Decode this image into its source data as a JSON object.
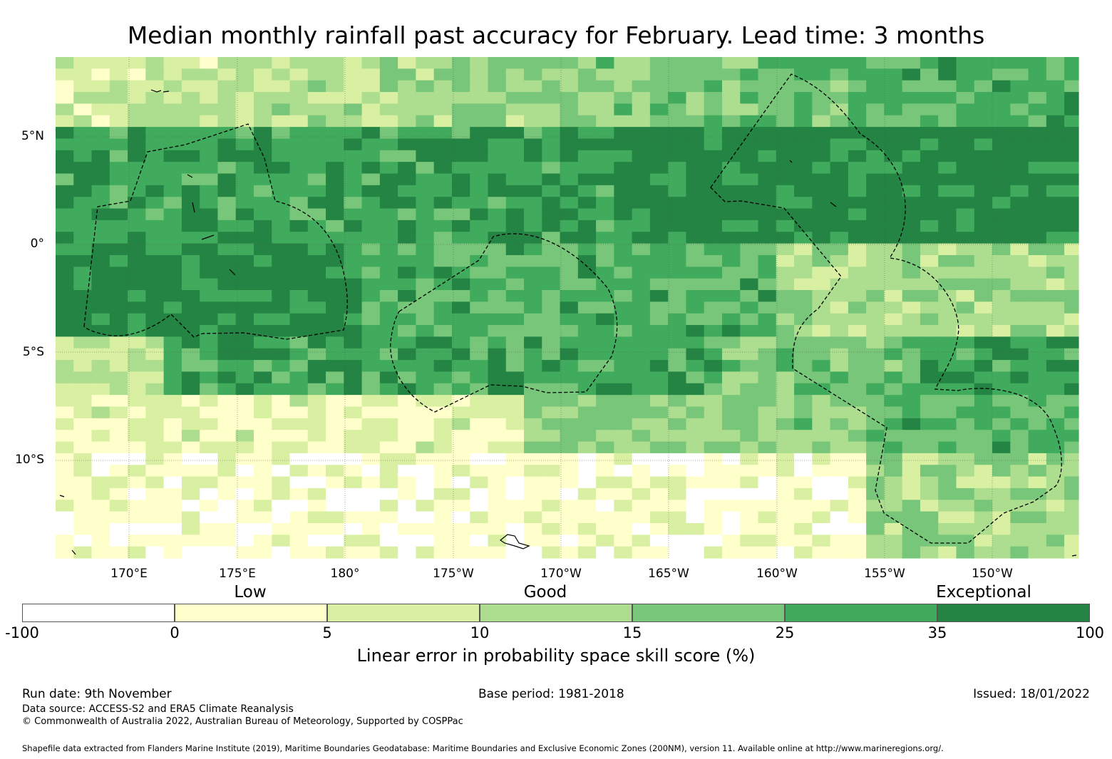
{
  "title": "Median monthly rainfall past accuracy for February. Lead time: 3 months",
  "map": {
    "lat_labels": [
      "5°N",
      "0°",
      "5°S",
      "10°S"
    ],
    "lon_labels": [
      "170°E",
      "175°E",
      "180°",
      "175°W",
      "170°W",
      "165°W",
      "160°W",
      "155°W",
      "150°W"
    ],
    "extent": {
      "lon_min": 166.6,
      "lon_max": 213.9,
      "lat_min": -14.6,
      "lat_max": 8.5
    }
  },
  "colorbar": {
    "category_labels": [
      "Low",
      "Good",
      "Exceptional"
    ],
    "ticks": [
      "-100",
      "0",
      "5",
      "10",
      "15",
      "25",
      "35",
      "100"
    ],
    "colors": [
      "#ffffff",
      "#ffffcc",
      "#d9f0a3",
      "#addd8e",
      "#78c679",
      "#41ab5d",
      "#238443"
    ],
    "title": "Linear error in probability space skill score (%)"
  },
  "footer": {
    "run_date": "Run date: 9th November",
    "base_period": "Base period: 1981-2018",
    "issued": "Issued: 18/01/2022",
    "data_source": "Data source: ACCESS-S2 and ERA5 Climate Reanalysis",
    "copyright": "© Commonwealth of Australia 2022, Australian Bureau of Meteorology, Supported by COSPPac",
    "shapefile": "Shapefile data extracted from Flanders Marine Institute (2019), Maritime Boundaries Geodatabase: Maritime Boundaries and Exclusive Economic Zones (200NM), version 11. Available online at http://www.marineregions.org/."
  }
}
